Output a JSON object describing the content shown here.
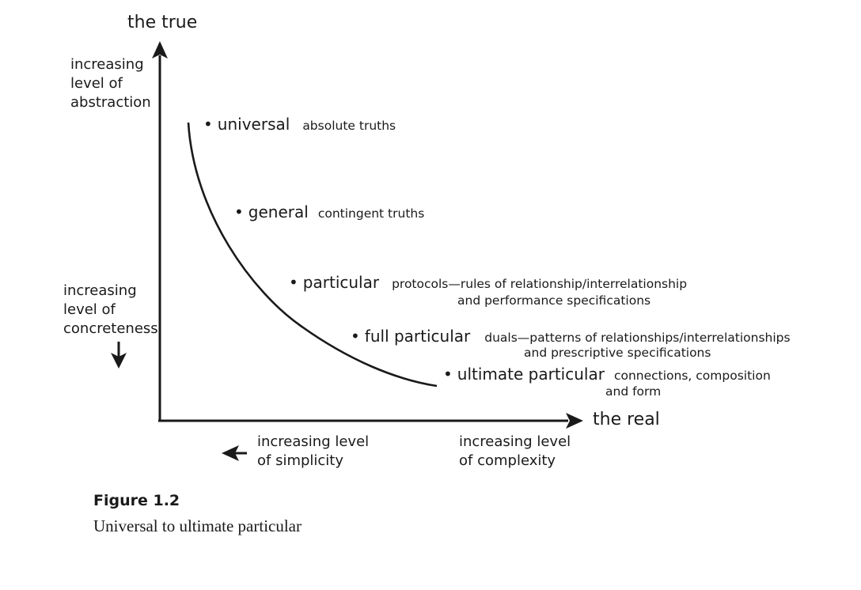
{
  "axes": {
    "y_top_label": "the true",
    "x_right_label": "the real",
    "y_upper_note": [
      "increasing",
      "level of",
      "abstraction"
    ],
    "y_lower_note": [
      "increasing",
      "level of",
      "concreteness"
    ],
    "x_left_note": [
      "increasing level",
      "of simplicity"
    ],
    "x_right_note": [
      "increasing level",
      "of complexity"
    ]
  },
  "levels": [
    {
      "name": "universal",
      "desc": [
        "absolute truths"
      ]
    },
    {
      "name": "general",
      "desc": [
        "contingent truths"
      ]
    },
    {
      "name": "particular",
      "desc": [
        "protocols—rules of relationship/interrelationship",
        "and performance specifications"
      ]
    },
    {
      "name": "full particular",
      "desc": [
        "duals—patterns of relationships/interrelationships",
        "and prescriptive specifications"
      ]
    },
    {
      "name": "ultimate particular",
      "desc": [
        "connections, composition",
        "and form"
      ]
    }
  ],
  "caption": {
    "label": "Figure 1.2",
    "text": "Universal to ultimate particular"
  },
  "colors": {
    "ink": "#1a1a1a",
    "background": "#ffffff"
  }
}
